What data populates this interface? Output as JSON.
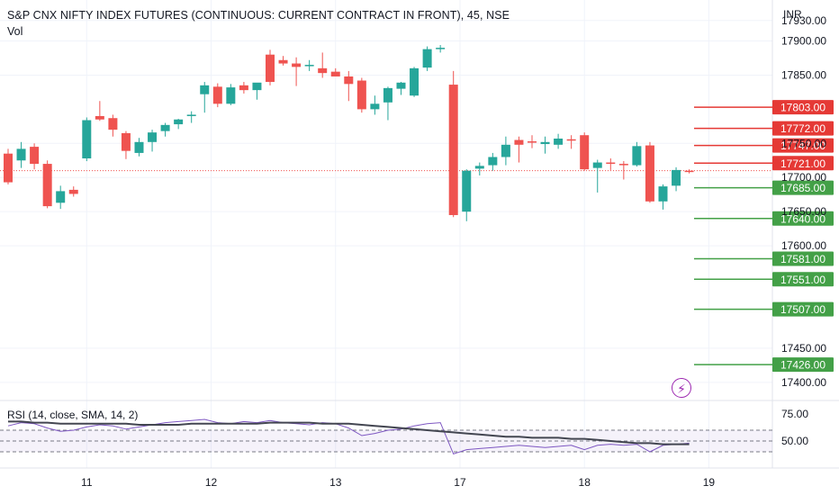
{
  "header": {
    "title": "S&P CNX NIFTY INDEX FUTURES (CONTINUOUS: CURRENT CONTRACT IN FRONT), 45, NSE",
    "sub": "Vol",
    "currency": "INR"
  },
  "indicator": {
    "label": "RSI (14, close, SMA, 14, 2)",
    "icon": "lightning-bolt-icon"
  },
  "colors": {
    "up": "#26a69a",
    "down": "#ef5350",
    "rsi": "#7e57c2",
    "rsi_ma": "#434651",
    "resistance": "#e53935",
    "support": "#43a047"
  },
  "chart_data": [
    {
      "type": "candlestick",
      "x_ticks": [
        "11",
        "12",
        "13",
        "17",
        "18",
        "19"
      ],
      "y_ticks": [
        "17930.00",
        "17900.00",
        "17850.00",
        "17750.00",
        "17700.00",
        "17650.00",
        "17600.00",
        "17450.00",
        "17400.00"
      ],
      "ylim": [
        17380,
        17960
      ],
      "last_price": 17710,
      "candles": [
        [
          17735,
          17742,
          17690,
          17693
        ],
        [
          17725,
          17752,
          17714,
          17742
        ],
        [
          17745,
          17750,
          17712,
          17720
        ],
        [
          17720,
          17725,
          17655,
          17658
        ],
        [
          17663,
          17688,
          17654,
          17680
        ],
        [
          17682,
          17687,
          17672,
          17676
        ],
        [
          17728,
          17788,
          17724,
          17784
        ],
        [
          17790,
          17812,
          17783,
          17785
        ],
        [
          17787,
          17792,
          17760,
          17770
        ],
        [
          17765,
          17768,
          17727,
          17739
        ],
        [
          17736,
          17758,
          17731,
          17752
        ],
        [
          17752,
          17770,
          17738,
          17766
        ],
        [
          17768,
          17780,
          17760,
          17777
        ],
        [
          17778,
          17786,
          17771,
          17785
        ],
        [
          17790,
          17797,
          17780,
          17792
        ],
        [
          17822,
          17840,
          17795,
          17835
        ],
        [
          17833,
          17838,
          17803,
          17808
        ],
        [
          17808,
          17837,
          17806,
          17832
        ],
        [
          17835,
          17840,
          17823,
          17828
        ],
        [
          17828,
          17836,
          17814,
          17839
        ],
        [
          17880,
          17887,
          17835,
          17840
        ],
        [
          17872,
          17878,
          17864,
          17867
        ],
        [
          17867,
          17876,
          17834,
          17862
        ],
        [
          17864,
          17872,
          17856,
          17865
        ],
        [
          17860,
          17883,
          17846,
          17853
        ],
        [
          17855,
          17860,
          17850,
          17848
        ],
        [
          17848,
          17856,
          17812,
          17837
        ],
        [
          17842,
          17846,
          17795,
          17800
        ],
        [
          17800,
          17820,
          17792,
          17808
        ],
        [
          17810,
          17833,
          17784,
          17831
        ],
        [
          17830,
          17840,
          17821,
          17839
        ],
        [
          17820,
          17862,
          17818,
          17860
        ],
        [
          17861,
          17892,
          17856,
          17888
        ],
        [
          17888,
          17894,
          17883,
          17890
        ],
        [
          17836,
          17856,
          17642,
          17645
        ],
        [
          17650,
          17712,
          17636,
          17710
        ],
        [
          17713,
          17722,
          17703,
          17717
        ],
        [
          17718,
          17736,
          17710,
          17730
        ],
        [
          17730,
          17760,
          17718,
          17748
        ],
        [
          17755,
          17760,
          17722,
          17748
        ],
        [
          17753,
          17762,
          17743,
          17751
        ],
        [
          17749,
          17760,
          17735,
          17752
        ],
        [
          17748,
          17764,
          17742,
          17757
        ],
        [
          17756,
          17762,
          17742,
          17754
        ],
        [
          17762,
          17766,
          17710,
          17712
        ],
        [
          17714,
          17726,
          17678,
          17722
        ],
        [
          17722,
          17728,
          17711,
          17720
        ],
        [
          17720,
          17724,
          17697,
          17719
        ],
        [
          17718,
          17752,
          17716,
          17746
        ],
        [
          17747,
          17752,
          17663,
          17665
        ],
        [
          17665,
          17690,
          17653,
          17687
        ],
        [
          17688,
          17715,
          17680,
          17711
        ],
        [
          17710,
          17712,
          17706,
          17708
        ]
      ],
      "levels": [
        {
          "value": 17803,
          "label": "17803.00",
          "kind": "resistance"
        },
        {
          "value": 17772,
          "label": "17772.00",
          "kind": "resistance"
        },
        {
          "value": 17747,
          "label": "17747.00",
          "kind": "resistance"
        },
        {
          "value": 17721,
          "label": "17721.00",
          "kind": "resistance"
        },
        {
          "value": 17685,
          "label": "17685.00",
          "kind": "support"
        },
        {
          "value": 17640,
          "label": "17640.00",
          "kind": "support"
        },
        {
          "value": 17581,
          "label": "17581.00",
          "kind": "support"
        },
        {
          "value": 17551,
          "label": "17551.00",
          "kind": "support"
        },
        {
          "value": 17507,
          "label": "17507.00",
          "kind": "support"
        },
        {
          "value": 17426,
          "label": "17426.00",
          "kind": "support"
        }
      ]
    },
    {
      "type": "line",
      "y_ticks": [
        "75.00",
        "50.00"
      ],
      "ylim": [
        30,
        85
      ],
      "bands": [
        60,
        50,
        40
      ],
      "series": [
        {
          "values": [
            64,
            67,
            66,
            62,
            59,
            60,
            63,
            65,
            64,
            61,
            63,
            65,
            67,
            68,
            69,
            70,
            67,
            66,
            68,
            67,
            69,
            67,
            66,
            65,
            67,
            66,
            62,
            55,
            57,
            60,
            61,
            64,
            66,
            67,
            38,
            42,
            43,
            44,
            45,
            46,
            45,
            44,
            45,
            46,
            42,
            46,
            47,
            46,
            47,
            40,
            46,
            47,
            48
          ]
        },
        {
          "values": [
            68,
            68,
            67,
            67,
            66,
            66,
            66,
            66,
            66,
            66,
            65,
            65,
            65,
            65,
            66,
            66,
            66,
            66,
            66,
            66,
            67,
            67,
            67,
            67,
            66,
            66,
            66,
            65,
            64,
            63,
            62,
            61,
            60,
            59,
            58,
            57,
            56,
            55,
            54,
            54,
            53,
            53,
            53,
            52,
            52,
            51,
            50,
            49,
            48,
            48,
            47,
            47,
            47
          ]
        }
      ]
    }
  ]
}
